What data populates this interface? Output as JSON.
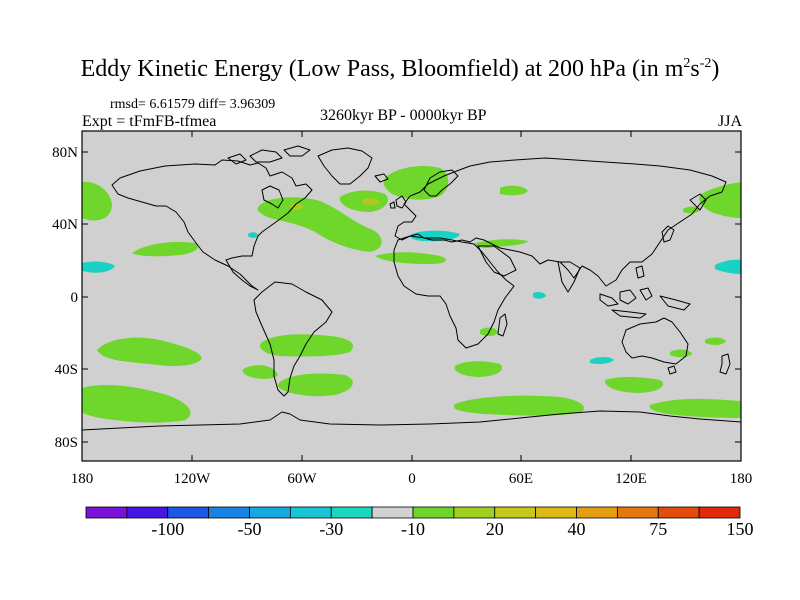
{
  "title": {
    "text": "Eddy Kinetic Energy (Low Pass, Bloomfield) at 200 hPa (in m",
    "exp1": "2",
    "mid": "s",
    "exp2": "-2",
    "close": ")"
  },
  "stats": "rmsd= 6.61579 diff= 3.96309",
  "expt": "Expt = tFmFB-tfmea",
  "period": "3260kyr BP - 0000kyr BP",
  "season": "JJA",
  "axes": {
    "y_ticks": [
      "80N",
      "40N",
      "0",
      "40S",
      "80S"
    ],
    "x_ticks": [
      "180",
      "120W",
      "60W",
      "0",
      "60E",
      "120E",
      "180"
    ]
  },
  "colors": {
    "ocean_background": "#d0d0d0",
    "coast": "#000000",
    "positive_fill": "#6fd72b",
    "positive_core": "#b0c820",
    "negative_fill": "#19d2c4"
  },
  "colorbar": {
    "colors": [
      "#7b12d9",
      "#4616e3",
      "#1a58e6",
      "#1783e4",
      "#15a9e0",
      "#18c4d6",
      "#1ad8bd",
      "#d2d2d2",
      "#6ed62b",
      "#a1cf1f",
      "#c5c91e",
      "#dcbb14",
      "#e59d12",
      "#e4780f",
      "#e24d0b",
      "#e2290b"
    ],
    "labels": [
      "-100",
      "-50",
      "-30",
      "-10",
      "20",
      "40",
      "75",
      "150"
    ]
  }
}
